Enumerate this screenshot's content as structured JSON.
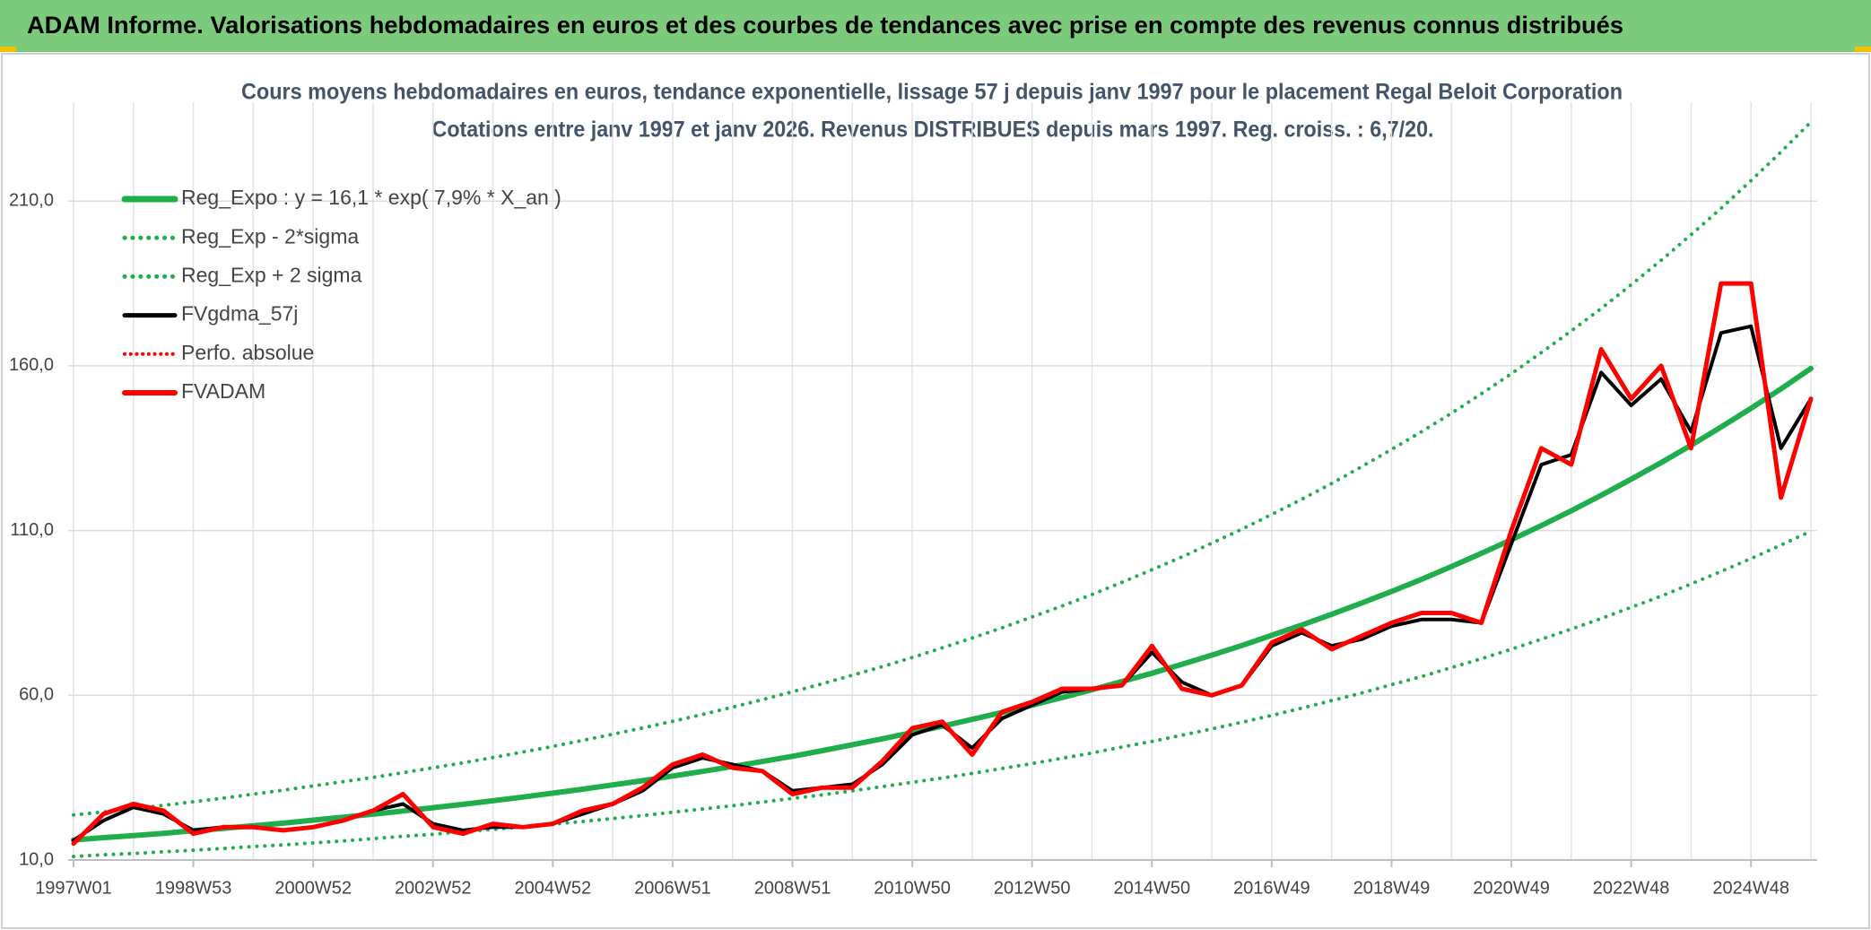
{
  "header": {
    "title": "ADAM Informe. Valorisations hebdomadaires en euros et des courbes de tendances avec prise en compte des revenus connus distribués"
  },
  "chart_data": {
    "type": "line",
    "title": "Cours moyens hebdomadaires en euros, tendance exponentielle, lissage 57 j depuis janv 1997 pour le placement Regal Beloit Corporation",
    "subtitle": "Cotations entre janv 1997 et janv 2026. Revenus DISTRIBUES depuis mars 1997. Reg. croiss. : 6,7/20.",
    "categories": [
      "1997W01",
      null,
      null,
      null,
      "1998W53",
      null,
      null,
      null,
      "2000W52",
      null,
      null,
      null,
      "2002W52",
      null,
      null,
      null,
      "2004W52",
      null,
      null,
      null,
      "2006W51",
      null,
      null,
      null,
      "2008W51",
      null,
      null,
      null,
      "2010W50",
      null,
      null,
      null,
      "2012W50",
      null,
      null,
      null,
      "2014W50",
      null,
      null,
      null,
      "2016W49",
      null,
      null,
      null,
      "2018W49",
      null,
      null,
      null,
      "2020W49",
      null,
      null,
      null,
      "2022W48",
      null,
      null,
      null,
      "2024W48",
      null,
      null
    ],
    "ylim": [
      10,
      240
    ],
    "yticks": [
      {
        "value": 10,
        "label": "10,0"
      },
      {
        "value": 60,
        "label": "60,0"
      },
      {
        "value": 110,
        "label": "110,0"
      },
      {
        "value": 160,
        "label": "160,0"
      },
      {
        "value": 210,
        "label": "210,0"
      }
    ],
    "grid": true,
    "legend": "top-left",
    "series": [
      {
        "name": "Reg_Expo : y = 16,1 * exp( 7,9% *  X_an )",
        "color": "#1fae4b",
        "dash": "solid",
        "width": 6,
        "values": [
          16.1,
          16.8,
          17.4,
          18.1,
          18.9,
          19.6,
          20.4,
          21.2,
          22.1,
          23.0,
          23.9,
          24.9,
          25.9,
          26.9,
          28.0,
          29.1,
          30.3,
          31.5,
          32.8,
          34.1,
          35.5,
          36.9,
          38.4,
          39.9,
          41.5,
          43.2,
          45.0,
          46.8,
          48.7,
          50.6,
          52.7,
          54.8,
          57.0,
          59.3,
          61.7,
          64.2,
          66.7,
          69.4,
          72.2,
          75.1,
          78.2,
          81.3,
          84.6,
          88.0,
          91.5,
          95.2,
          99.1,
          103.1,
          107.2,
          111.5,
          116.0,
          120.7,
          125.6,
          130.6,
          135.9,
          141.4,
          147.1,
          153.0,
          159.2
        ]
      },
      {
        "name": "Reg_Exp - 2*sigma",
        "color": "#1fae4b",
        "dash": "dotted",
        "width": 4,
        "values": [
          11.1,
          11.6,
          12.0,
          12.5,
          13.0,
          13.5,
          14.1,
          14.6,
          15.2,
          15.8,
          16.5,
          17.2,
          17.8,
          18.6,
          19.3,
          20.1,
          20.9,
          21.7,
          22.6,
          23.5,
          24.5,
          25.5,
          26.5,
          27.6,
          28.7,
          29.8,
          31.0,
          32.3,
          33.6,
          34.9,
          36.3,
          37.8,
          39.3,
          40.9,
          42.5,
          44.3,
          46.0,
          47.9,
          49.8,
          51.8,
          53.9,
          56.1,
          58.4,
          60.7,
          63.2,
          65.7,
          68.4,
          71.1,
          74.0,
          77.0,
          80.1,
          83.3,
          86.7,
          90.1,
          93.8,
          97.6,
          101.5,
          105.6,
          109.8
        ]
      },
      {
        "name": "Reg_Exp + 2 sigma",
        "color": "#1fae4b",
        "dash": "dotted",
        "width": 4,
        "values": [
          23.7,
          24.6,
          25.6,
          26.6,
          27.7,
          28.8,
          30.0,
          31.2,
          32.5,
          33.8,
          35.1,
          36.5,
          38.0,
          39.5,
          41.1,
          42.8,
          44.5,
          46.3,
          48.2,
          50.1,
          52.1,
          54.2,
          56.4,
          58.7,
          61.1,
          63.5,
          66.1,
          68.7,
          71.5,
          74.4,
          77.4,
          80.5,
          83.8,
          87.1,
          90.6,
          94.3,
          98.1,
          102.0,
          106.2,
          110.4,
          114.9,
          119.5,
          124.3,
          129.4,
          134.6,
          140.0,
          145.6,
          151.5,
          157.6,
          164.0,
          170.6,
          177.4,
          184.6,
          192.0,
          199.8,
          207.8,
          216.2,
          224.9,
          234.0
        ]
      },
      {
        "name": "FVgdma_57j",
        "color": "#000000",
        "dash": "solid",
        "width": 4,
        "values": [
          16,
          22,
          26,
          24,
          19,
          20,
          20,
          19,
          20,
          22,
          25,
          27,
          21,
          19,
          20,
          20,
          21,
          24,
          27,
          31,
          38,
          41,
          39,
          37,
          31,
          32,
          33,
          39,
          48,
          51,
          44,
          53,
          57,
          61,
          62,
          63,
          73,
          64,
          60,
          63,
          75,
          79,
          75,
          77,
          81,
          83,
          83,
          82,
          106,
          130,
          133,
          158,
          148,
          156,
          140,
          170,
          172,
          135,
          150
        ]
      },
      {
        "name": "Perfo. absolue",
        "color": "#ff0000",
        "dash": "dotted",
        "width": 3,
        "values": [
          15,
          24,
          27,
          25,
          18,
          20,
          20,
          19,
          20,
          22,
          25,
          30,
          20,
          18,
          21,
          20,
          21,
          25,
          27,
          32,
          39,
          42,
          38,
          37,
          30,
          32,
          32,
          40,
          50,
          52,
          42,
          55,
          58,
          62,
          62,
          63,
          75,
          62,
          60,
          63,
          76,
          80,
          74,
          78,
          82,
          85,
          85,
          82,
          110,
          135,
          130,
          165,
          150,
          160,
          135,
          185,
          185,
          120,
          150
        ]
      },
      {
        "name": "FVADAM",
        "color": "#ff0000",
        "dash": "solid",
        "width": 5,
        "values": [
          15,
          24,
          27,
          25,
          18,
          20,
          20,
          19,
          20,
          22,
          25,
          30,
          20,
          18,
          21,
          20,
          21,
          25,
          27,
          32,
          39,
          42,
          38,
          37,
          30,
          32,
          32,
          40,
          50,
          52,
          42,
          55,
          58,
          62,
          62,
          63,
          75,
          62,
          60,
          63,
          76,
          80,
          74,
          78,
          82,
          85,
          85,
          82,
          110,
          135,
          130,
          165,
          150,
          160,
          135,
          185,
          185,
          120,
          150
        ]
      }
    ]
  }
}
